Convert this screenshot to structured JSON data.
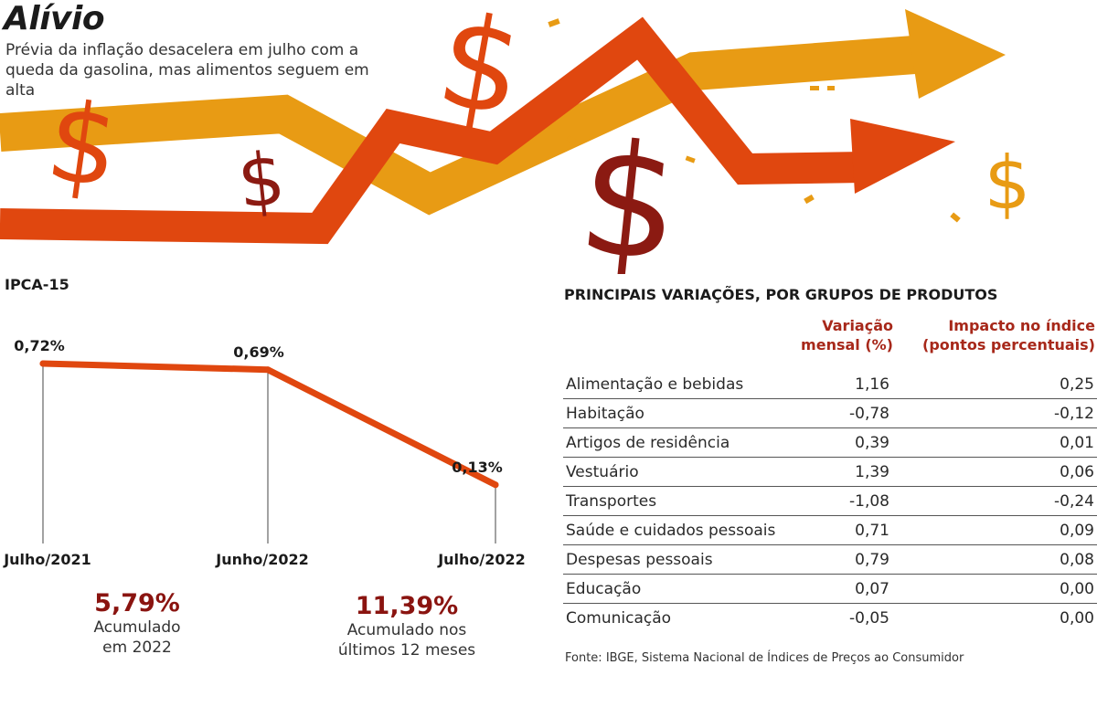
{
  "header": {
    "title": "Alívio",
    "subtitle": "Prévia da inflação desacelera em julho com a queda da gasolina, mas alimentos seguem em alta",
    "hero_glyph": "$",
    "colors": {
      "red_arrow": "#e0470f",
      "yellow_arrow": "#e89b14",
      "dark_dollar": "#8b1a12"
    }
  },
  "chart_data": [
    {
      "type": "line",
      "title": "IPCA-15",
      "categories": [
        "Julho/2021",
        "Junho/2022",
        "Julho/2022"
      ],
      "values": [
        0.72,
        0.69,
        0.13
      ],
      "value_labels": [
        "0,72%",
        "0,69%",
        "0,13%"
      ],
      "ylim": [
        0,
        0.8
      ],
      "grid": false,
      "color": "#e0470f"
    },
    {
      "type": "table",
      "title": "PRINCIPAIS VARIAÇÕES, POR GRUPOS DE PRODUTOS",
      "columns": [
        "",
        "Variação mensal (%)",
        "Impacto no índice (pontos percentuais)"
      ],
      "column_headers": {
        "variacao": [
          "Variação",
          "mensal (%)"
        ],
        "impacto": [
          "Impacto no índice",
          "(pontos percentuais)"
        ]
      },
      "rows": [
        {
          "group": "Alimentação e bebidas",
          "variacao": "1,16",
          "impacto": "0,25"
        },
        {
          "group": "Habitação",
          "variacao": "-0,78",
          "impacto": "-0,12"
        },
        {
          "group": "Artigos de residência",
          "variacao": "0,39",
          "impacto": "0,01"
        },
        {
          "group": "Vestuário",
          "variacao": "1,39",
          "impacto": "0,06"
        },
        {
          "group": "Transportes",
          "variacao": "-1,08",
          "impacto": "-0,24"
        },
        {
          "group": "Saúde e cuidados pessoais",
          "variacao": "0,71",
          "impacto": "0,09"
        },
        {
          "group": "Despesas pessoais",
          "variacao": "0,79",
          "impacto": "0,08"
        },
        {
          "group": "Educação",
          "variacao": "0,07",
          "impacto": "0,00"
        },
        {
          "group": "Comunicação",
          "variacao": "-0,05",
          "impacto": "0,00"
        }
      ]
    }
  ],
  "stats": [
    {
      "value": "5,79%",
      "caption_lines": [
        "Acumulado",
        "em 2022"
      ]
    },
    {
      "value": "11,39%",
      "caption_lines": [
        "Acumulado nos",
        "últimos 12 meses"
      ]
    }
  ],
  "source": "Fonte: IBGE, Sistema Nacional de Índices de Preços ao Consumidor"
}
